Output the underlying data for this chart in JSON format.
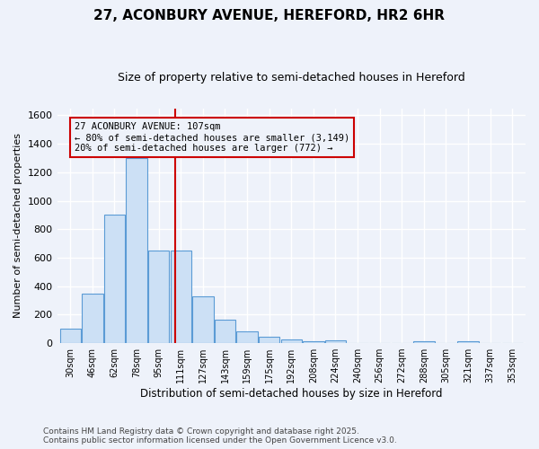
{
  "title": "27, ACONBURY AVENUE, HEREFORD, HR2 6HR",
  "subtitle": "Size of property relative to semi-detached houses in Hereford",
  "xlabel": "Distribution of semi-detached houses by size in Hereford",
  "ylabel": "Number of semi-detached properties",
  "categories": [
    "30sqm",
    "46sqm",
    "62sqm",
    "78sqm",
    "95sqm",
    "111sqm",
    "127sqm",
    "143sqm",
    "159sqm",
    "175sqm",
    "192sqm",
    "208sqm",
    "224sqm",
    "240sqm",
    "256sqm",
    "272sqm",
    "288sqm",
    "305sqm",
    "321sqm",
    "337sqm",
    "353sqm"
  ],
  "values": [
    100,
    350,
    900,
    1300,
    650,
    650,
    330,
    165,
    80,
    45,
    25,
    15,
    20,
    0,
    0,
    0,
    10,
    0,
    10,
    0,
    0
  ],
  "bar_color": "#cce0f5",
  "bar_edge_color": "#5b9bd5",
  "vline_color": "#cc0000",
  "annotation_title": "27 ACONBURY AVENUE: 107sqm",
  "annotation_line1": "← 80% of semi-detached houses are smaller (3,149)",
  "annotation_line2": "20% of semi-detached houses are larger (772) →",
  "annotation_box_color": "#cc0000",
  "ylim": [
    0,
    1650
  ],
  "yticks": [
    0,
    200,
    400,
    600,
    800,
    1000,
    1200,
    1400,
    1600
  ],
  "footer1": "Contains HM Land Registry data © Crown copyright and database right 2025.",
  "footer2": "Contains public sector information licensed under the Open Government Licence v3.0.",
  "bg_color": "#eef2fa",
  "grid_color": "#ffffff"
}
